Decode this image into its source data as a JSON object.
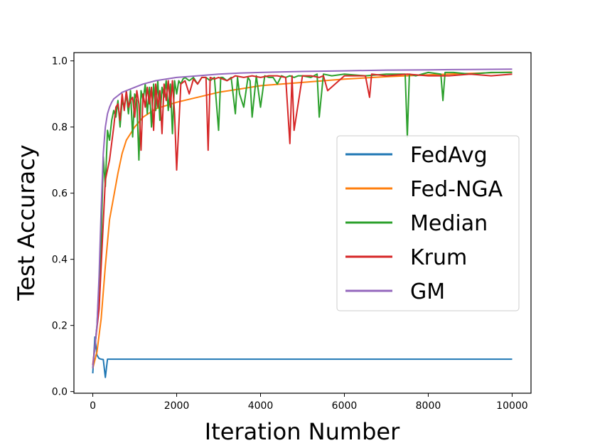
{
  "chart_data": {
    "type": "line",
    "xlabel": "Iteration Number",
    "ylabel": "Test Accuracy",
    "xlim": [
      -450,
      10450
    ],
    "ylim": [
      -0.005,
      1.025
    ],
    "x_ticks": [
      0,
      2000,
      4000,
      6000,
      8000,
      10000
    ],
    "y_ticks": [
      0.0,
      0.2,
      0.4,
      0.6,
      0.8,
      1.0
    ],
    "y_tick_labels": [
      "0.0",
      "0.2",
      "0.4",
      "0.6",
      "0.8",
      "1.0"
    ],
    "grid": false,
    "legend_placement": "center-right",
    "series": [
      {
        "name": "FedAvg",
        "color": "#1f77b4",
        "x": [
          0,
          50,
          100,
          150,
          200,
          250,
          300,
          350,
          400,
          500,
          1000,
          2000,
          4000,
          6000,
          8000,
          10000
        ],
        "y": [
          0.055,
          0.165,
          0.11,
          0.1,
          0.098,
          0.097,
          0.043,
          0.098,
          0.098,
          0.098,
          0.098,
          0.098,
          0.098,
          0.098,
          0.098,
          0.098
        ]
      },
      {
        "name": "Fed-NGA",
        "color": "#ff7f0e",
        "x": [
          0,
          100,
          200,
          300,
          400,
          500,
          600,
          700,
          800,
          1000,
          1200,
          1500,
          2000,
          2500,
          3000,
          3500,
          4000,
          5000,
          6000,
          7000,
          8000,
          9000,
          10000
        ],
        "y": [
          0.07,
          0.12,
          0.22,
          0.38,
          0.52,
          0.59,
          0.66,
          0.72,
          0.76,
          0.8,
          0.83,
          0.855,
          0.875,
          0.89,
          0.905,
          0.915,
          0.925,
          0.935,
          0.945,
          0.952,
          0.958,
          0.962,
          0.966
        ]
      },
      {
        "name": "Median",
        "color": "#2ca02c",
        "x": [
          0,
          100,
          200,
          250,
          300,
          350,
          400,
          450,
          500,
          550,
          600,
          650,
          700,
          750,
          800,
          850,
          900,
          950,
          1000,
          1050,
          1100,
          1150,
          1200,
          1250,
          1300,
          1350,
          1400,
          1450,
          1500,
          1550,
          1600,
          1650,
          1700,
          1750,
          1800,
          1850,
          1900,
          1950,
          2000,
          2050,
          2100,
          2150,
          2200,
          2300,
          2400,
          2500,
          2600,
          2700,
          2800,
          2900,
          3000,
          3050,
          3100,
          3200,
          3300,
          3400,
          3450,
          3500,
          3600,
          3700,
          3750,
          3800,
          3900,
          4000,
          4100,
          4200,
          4300,
          4400,
          4500,
          4600,
          4700,
          4800,
          4900,
          5000,
          5200,
          5350,
          5400,
          5500,
          5700,
          6000,
          6500,
          7000,
          7450,
          7500,
          7550,
          7700,
          8000,
          8300,
          8350,
          8400,
          8600,
          9000,
          9500,
          10000
        ],
        "y": [
          0.07,
          0.2,
          0.45,
          0.71,
          0.62,
          0.79,
          0.76,
          0.82,
          0.85,
          0.83,
          0.88,
          0.8,
          0.88,
          0.86,
          0.9,
          0.84,
          0.91,
          0.77,
          0.9,
          0.88,
          0.7,
          0.91,
          0.88,
          0.93,
          0.84,
          0.92,
          0.8,
          0.93,
          0.85,
          0.94,
          0.82,
          0.92,
          0.89,
          0.94,
          0.85,
          0.93,
          0.78,
          0.94,
          0.9,
          0.94,
          0.93,
          0.945,
          0.95,
          0.94,
          0.95,
          0.93,
          0.95,
          0.95,
          0.94,
          0.95,
          0.79,
          0.95,
          0.95,
          0.94,
          0.95,
          0.84,
          0.95,
          0.9,
          0.86,
          0.95,
          0.94,
          0.83,
          0.955,
          0.86,
          0.955,
          0.95,
          0.95,
          0.93,
          0.955,
          0.95,
          0.955,
          0.95,
          0.955,
          0.955,
          0.95,
          0.96,
          0.83,
          0.96,
          0.955,
          0.96,
          0.955,
          0.96,
          0.96,
          0.77,
          0.96,
          0.955,
          0.965,
          0.96,
          0.88,
          0.965,
          0.965,
          0.96,
          0.965,
          0.965
        ]
      },
      {
        "name": "Krum",
        "color": "#d62728",
        "x": [
          0,
          150,
          300,
          400,
          500,
          550,
          600,
          650,
          700,
          750,
          800,
          850,
          900,
          950,
          1000,
          1050,
          1100,
          1150,
          1200,
          1250,
          1300,
          1350,
          1400,
          1450,
          1500,
          1550,
          1600,
          1650,
          1700,
          1750,
          1800,
          1850,
          1900,
          1950,
          2000,
          2100,
          2200,
          2300,
          2400,
          2500,
          2600,
          2700,
          2750,
          2800,
          2900,
          3000,
          3200,
          3400,
          3600,
          3800,
          4000,
          4200,
          4400,
          4600,
          4700,
          4750,
          4800,
          5000,
          5200,
          5400,
          5500,
          5600,
          6000,
          6500,
          6600,
          6650,
          7000,
          7500,
          8000,
          8500,
          9000,
          9500,
          10000
        ],
        "y": [
          0.08,
          0.25,
          0.64,
          0.7,
          0.8,
          0.86,
          0.87,
          0.82,
          0.9,
          0.85,
          0.91,
          0.86,
          0.88,
          0.89,
          0.83,
          0.91,
          0.87,
          0.73,
          0.9,
          0.86,
          0.92,
          0.87,
          0.92,
          0.79,
          0.93,
          0.86,
          0.91,
          0.78,
          0.93,
          0.88,
          0.94,
          0.86,
          0.94,
          0.84,
          0.67,
          0.93,
          0.94,
          0.9,
          0.945,
          0.93,
          0.95,
          0.95,
          0.73,
          0.95,
          0.945,
          0.95,
          0.94,
          0.955,
          0.95,
          0.955,
          0.95,
          0.955,
          0.955,
          0.95,
          0.75,
          0.955,
          0.79,
          0.955,
          0.955,
          0.95,
          0.955,
          0.91,
          0.955,
          0.955,
          0.89,
          0.96,
          0.955,
          0.96,
          0.955,
          0.955,
          0.96,
          0.955,
          0.96
        ]
      },
      {
        "name": "GM",
        "color": "#9467bd",
        "x": [
          0,
          100,
          150,
          200,
          250,
          300,
          350,
          400,
          450,
          500,
          600,
          700,
          800,
          900,
          1000,
          1200,
          1500,
          2000,
          2500,
          3000,
          3500,
          4000,
          5000,
          6000,
          7000,
          8000,
          9000,
          10000
        ],
        "y": [
          0.07,
          0.2,
          0.35,
          0.55,
          0.72,
          0.8,
          0.84,
          0.86,
          0.875,
          0.885,
          0.895,
          0.905,
          0.91,
          0.915,
          0.92,
          0.93,
          0.94,
          0.95,
          0.955,
          0.96,
          0.963,
          0.965,
          0.968,
          0.97,
          0.972,
          0.973,
          0.974,
          0.975
        ]
      }
    ]
  }
}
